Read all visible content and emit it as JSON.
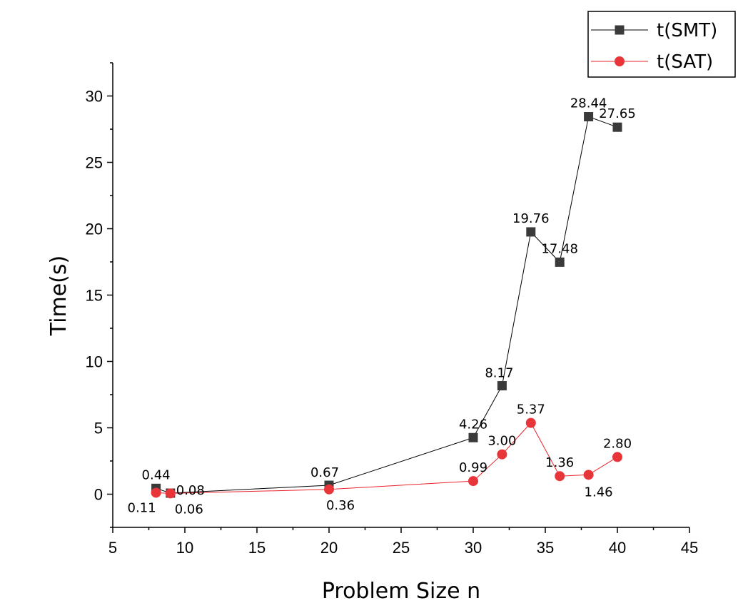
{
  "chart_data": {
    "type": "line",
    "xlabel": "Problem Size n",
    "ylabel": "Time(s)",
    "xlim": [
      5,
      45
    ],
    "ylim": [
      -2.5,
      32.5
    ],
    "xticks": [
      5,
      10,
      15,
      20,
      25,
      30,
      35,
      40,
      45
    ],
    "yticks": [
      0,
      5,
      10,
      15,
      20,
      25,
      30
    ],
    "grid": false,
    "legend_position": "top-right",
    "series": [
      {
        "name": "t(SMT)",
        "marker": "square",
        "color": "#000000",
        "marker_color": "#3a3a3a",
        "x": [
          8,
          9,
          20,
          30,
          32,
          34,
          36,
          38,
          40
        ],
        "y": [
          0.44,
          0.08,
          0.67,
          4.26,
          8.17,
          19.76,
          17.48,
          28.44,
          27.65
        ],
        "labels": [
          "0.44",
          "0.08",
          "0.67",
          "4.26",
          "8.17",
          "19.76",
          "17.48",
          "28.44",
          "27.65"
        ]
      },
      {
        "name": "t(SAT)",
        "marker": "circle",
        "color": "#e8232a",
        "marker_color": "#e8353a",
        "x": [
          8,
          9,
          20,
          30,
          32,
          34,
          36,
          38,
          40
        ],
        "y": [
          0.11,
          0.06,
          0.36,
          0.99,
          3.0,
          5.37,
          1.36,
          1.46,
          2.8
        ],
        "labels": [
          "0.11",
          "0.06",
          "0.36",
          "0.99",
          "3.00",
          "5.37",
          "1.36",
          "1.46",
          "2.80"
        ]
      }
    ]
  }
}
